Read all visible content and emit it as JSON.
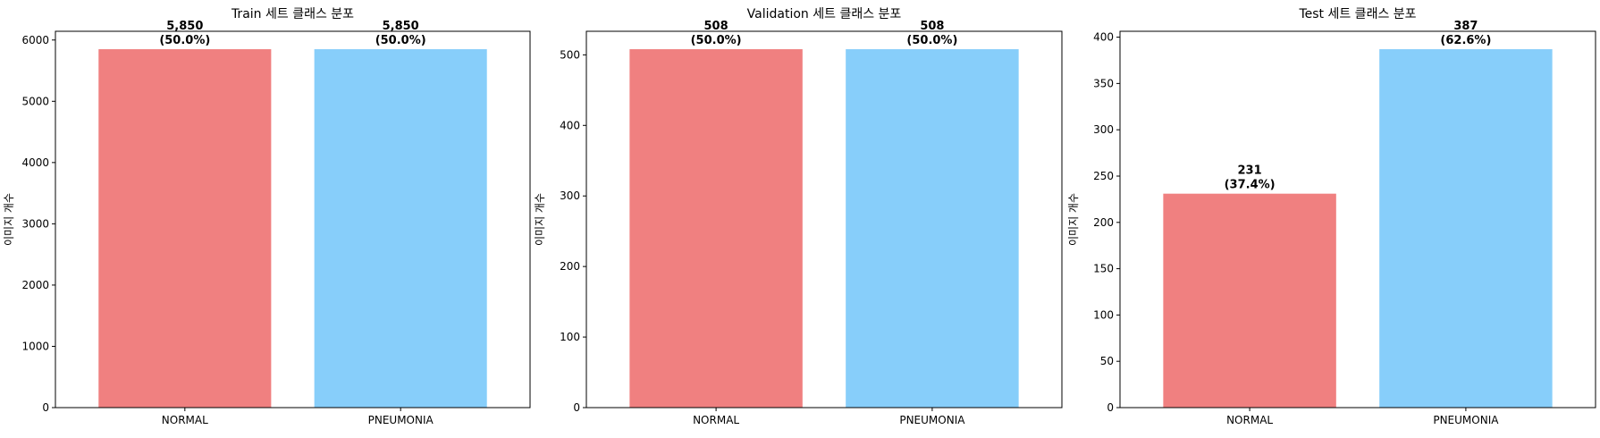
{
  "chart_data": [
    {
      "type": "bar",
      "title": "Train 세트 클래스 분포",
      "xlabel": "",
      "ylabel": "이미지 개수",
      "categories": [
        "NORMAL",
        "PNEUMONIA"
      ],
      "values": [
        5850,
        5850
      ],
      "data_labels": [
        "5,850\n(50.0%)",
        "5,850\n(50.0%)"
      ],
      "colors": [
        "#f08080",
        "#87cefa"
      ],
      "ylim": [
        0,
        6142.5
      ],
      "yticks": [
        0,
        1000,
        2000,
        3000,
        4000,
        5000,
        6000
      ],
      "grid": false
    },
    {
      "type": "bar",
      "title": "Validation 세트 클래스 분포",
      "xlabel": "",
      "ylabel": "이미지 개수",
      "categories": [
        "NORMAL",
        "PNEUMONIA"
      ],
      "values": [
        508,
        508
      ],
      "data_labels": [
        "508\n(50.0%)",
        "508\n(50.0%)"
      ],
      "colors": [
        "#f08080",
        "#87cefa"
      ],
      "ylim": [
        0,
        533.4
      ],
      "yticks": [
        0,
        100,
        200,
        300,
        400,
        500
      ],
      "grid": false
    },
    {
      "type": "bar",
      "title": "Test 세트 클래스 분포",
      "xlabel": "",
      "ylabel": "이미지 개수",
      "categories": [
        "NORMAL",
        "PNEUMONIA"
      ],
      "values": [
        231,
        387
      ],
      "data_labels": [
        "231\n(37.4%)",
        "387\n(62.6%)"
      ],
      "colors": [
        "#f08080",
        "#87cefa"
      ],
      "ylim": [
        0,
        406.35
      ],
      "yticks": [
        0,
        50,
        100,
        150,
        200,
        250,
        300,
        350,
        400
      ],
      "grid": false
    }
  ]
}
